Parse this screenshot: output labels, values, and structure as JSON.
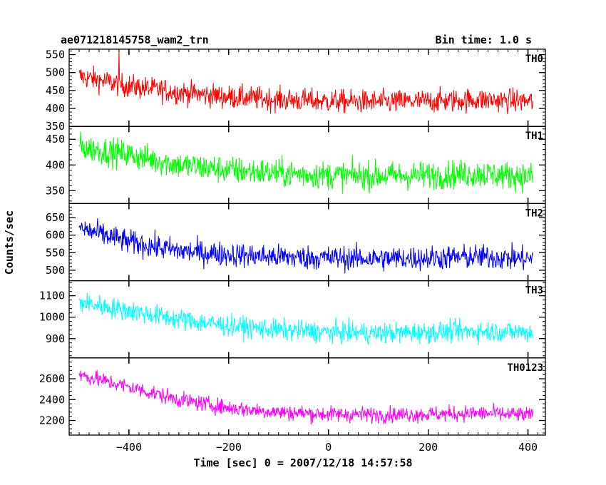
{
  "header": {
    "left_title": "ae071218145758_wam2_trn",
    "right_title": "Bin time: 1.0 s"
  },
  "chart_data": {
    "type": "line",
    "title": "ae071218145758_wam2_trn",
    "subtitle": "Bin time: 1.0 s",
    "xlabel": "Time [sec] 0 = 2007/12/18 14:57:58",
    "ylabel": "Counts/sec",
    "xlim": [
      -520,
      435
    ],
    "x_ticks": [
      -400,
      -200,
      0,
      200,
      400
    ],
    "x_tick_labels": [
      "−400",
      "−200",
      "0",
      "200",
      "400"
    ],
    "x_range": [
      -500,
      410
    ],
    "bin_time": 1.0,
    "grid": false,
    "series": [
      {
        "name": "TH0",
        "color": "#ff0000",
        "ylim": [
          350,
          565
        ],
        "y_ticks": [
          350,
          400,
          450,
          500,
          550
        ],
        "trend": [
          [
            -500,
            490
          ],
          [
            -400,
            462
          ],
          [
            -300,
            445
          ],
          [
            -200,
            432
          ],
          [
            -100,
            425
          ],
          [
            0,
            420
          ],
          [
            100,
            418
          ],
          [
            200,
            420
          ],
          [
            300,
            424
          ],
          [
            410,
            420
          ]
        ],
        "noise": 30,
        "spike": {
          "x": -420,
          "y": 562
        }
      },
      {
        "name": "TH1",
        "color": "#00ff00",
        "ylim": [
          325,
          475
        ],
        "y_ticks": [
          350,
          400,
          450
        ],
        "trend": [
          [
            -500,
            435
          ],
          [
            -400,
            420
          ],
          [
            -300,
            400
          ],
          [
            -200,
            390
          ],
          [
            -100,
            384
          ],
          [
            0,
            380
          ],
          [
            100,
            379
          ],
          [
            200,
            380
          ],
          [
            300,
            383
          ],
          [
            410,
            377
          ]
        ],
        "noise": 25
      },
      {
        "name": "TH2",
        "color": "#0000ff",
        "ylim": [
          470,
          690
        ],
        "y_ticks": [
          500,
          550,
          600,
          650
        ],
        "trend": [
          [
            -500,
            620
          ],
          [
            -400,
            580
          ],
          [
            -300,
            555
          ],
          [
            -200,
            545
          ],
          [
            -100,
            538
          ],
          [
            0,
            535
          ],
          [
            100,
            533
          ],
          [
            200,
            535
          ],
          [
            300,
            538
          ],
          [
            410,
            532
          ]
        ],
        "noise": 32
      },
      {
        "name": "TH3",
        "color": "#00ffff",
        "ylim": [
          810,
          1170
        ],
        "y_ticks": [
          900,
          1000,
          1100
        ],
        "trend": [
          [
            -500,
            1070
          ],
          [
            -400,
            1030
          ],
          [
            -300,
            990
          ],
          [
            -200,
            960
          ],
          [
            -100,
            940
          ],
          [
            0,
            930
          ],
          [
            100,
            925
          ],
          [
            200,
            930
          ],
          [
            300,
            935
          ],
          [
            410,
            930
          ]
        ],
        "noise": 45
      },
      {
        "name": "TH0123",
        "color": "#ff00ff",
        "ylim": [
          2060,
          2800
        ],
        "y_ticks": [
          2200,
          2400,
          2600
        ],
        "trend": [
          [
            -500,
            2640
          ],
          [
            -400,
            2520
          ],
          [
            -300,
            2400
          ],
          [
            -200,
            2320
          ],
          [
            -100,
            2280
          ],
          [
            0,
            2260
          ],
          [
            100,
            2255
          ],
          [
            200,
            2260
          ],
          [
            300,
            2270
          ],
          [
            410,
            2250
          ]
        ],
        "noise": 70
      }
    ]
  }
}
